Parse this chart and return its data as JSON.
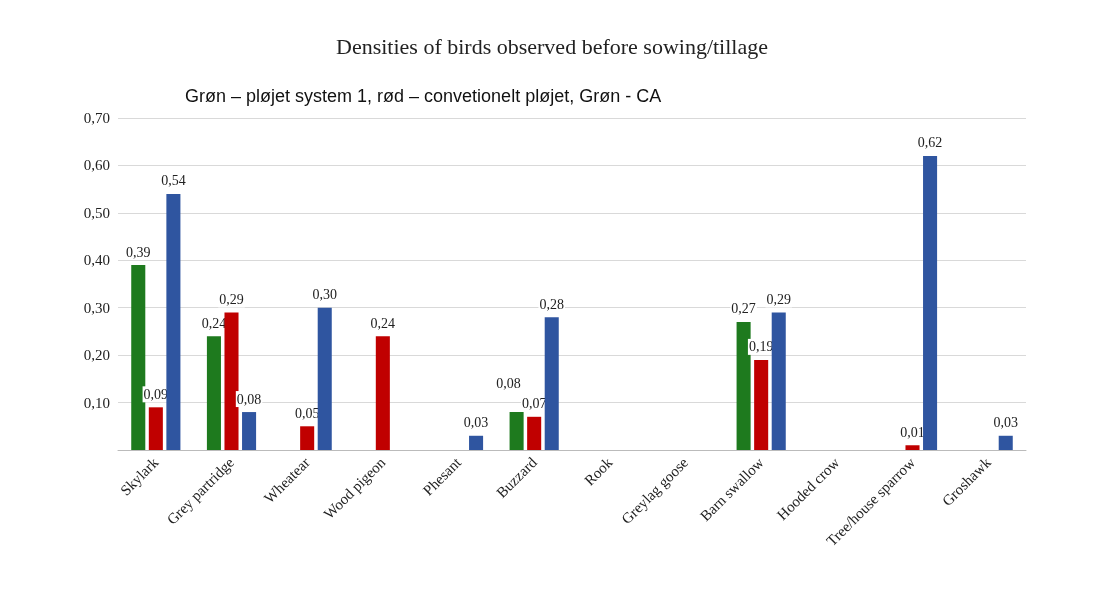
{
  "chart_data": {
    "type": "bar",
    "title": "Densities of birds observed before sowing/tillage",
    "subtitle": "Grøn – pløjet system 1, rød – convetionelt pløjet, Grøn - CA",
    "categories": [
      "Skylark",
      "Grey partridge",
      "Wheatear",
      "Wood pigeon",
      "Phesant",
      "Buzzard",
      "Rook",
      "Greylag goose",
      "Barn swallow",
      "Hooded crow",
      "Tree/house sparrow",
      "Groshawk"
    ],
    "series": [
      {
        "color": "#1e7a1e",
        "values": [
          0.39,
          0.24,
          null,
          null,
          null,
          0.08,
          null,
          null,
          0.27,
          null,
          null,
          null
        ],
        "value_labels": [
          "0,39",
          "0,24",
          null,
          null,
          null,
          "0,08",
          null,
          null,
          "0,27",
          null,
          null,
          null
        ]
      },
      {
        "color": "#c00000",
        "values": [
          0.09,
          0.29,
          0.05,
          0.24,
          null,
          0.07,
          null,
          null,
          0.19,
          null,
          0.01,
          null
        ],
        "value_labels": [
          "0,09",
          "0,29",
          "0,05",
          "0,24",
          null,
          "0,07",
          null,
          null,
          "0,19",
          null,
          "0,01",
          null
        ]
      },
      {
        "color": "#2f55a0",
        "values": [
          0.54,
          0.08,
          0.3,
          null,
          0.03,
          0.28,
          null,
          null,
          0.29,
          null,
          0.62,
          0.03
        ],
        "value_labels": [
          "0,54",
          "0,08",
          "0,30",
          null,
          "0,03",
          "0,28",
          null,
          null,
          "0,29",
          null,
          "0,62",
          "0,03"
        ]
      }
    ],
    "ylim": [
      0,
      0.7
    ],
    "yticks": [
      {
        "value": 0,
        "label": null
      },
      {
        "value": 0.1,
        "label": "0,10"
      },
      {
        "value": 0.2,
        "label": "0,20"
      },
      {
        "value": 0.3,
        "label": "0,30"
      },
      {
        "value": 0.4,
        "label": "0,40"
      },
      {
        "value": 0.5,
        "label": "0,50"
      },
      {
        "value": 0.6,
        "label": "0,60"
      },
      {
        "value": 0.7,
        "label": "0,70"
      }
    ],
    "grid": "y"
  }
}
